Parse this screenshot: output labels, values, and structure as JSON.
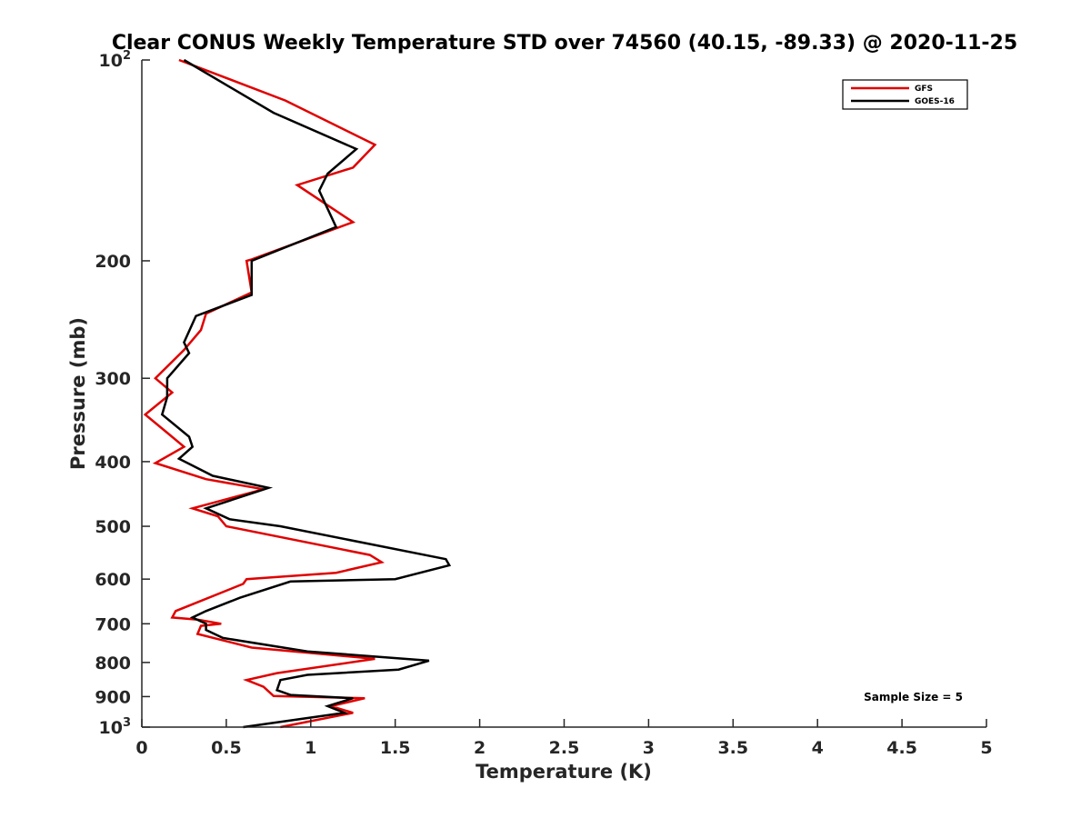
{
  "chart_data": {
    "type": "line",
    "title": "Clear CONUS Weekly Temperature STD over 74560 (40.15, -89.33) @ 2020-11-25",
    "xlabel": "Temperature (K)",
    "ylabel": "Pressure (mb)",
    "xlim": [
      0,
      5
    ],
    "ylim": [
      100,
      1000
    ],
    "y_scale": "log",
    "y_reversed": true,
    "x_ticks": [
      "0",
      "0.5",
      "1",
      "1.5",
      "2",
      "2.5",
      "3",
      "3.5",
      "4",
      "4.5",
      "5"
    ],
    "y_ticks": [
      {
        "value": 100,
        "base": "10",
        "exp": "2",
        "label": ""
      },
      {
        "value": 200,
        "label": "200"
      },
      {
        "value": 300,
        "label": "300"
      },
      {
        "value": 400,
        "label": "400"
      },
      {
        "value": 500,
        "label": "500"
      },
      {
        "value": 600,
        "label": "600"
      },
      {
        "value": 700,
        "label": "700"
      },
      {
        "value": 800,
        "label": "800"
      },
      {
        "value": 900,
        "label": "900"
      },
      {
        "value": 1000,
        "base": "10",
        "exp": "3",
        "label": ""
      }
    ],
    "grid": false,
    "legend_position": "top-right",
    "annotation": "Sample Size = 5",
    "series": [
      {
        "name": "GFS",
        "color": "#e00000",
        "points": [
          [
            0.22,
            100
          ],
          [
            0.85,
            115
          ],
          [
            1.38,
            134
          ],
          [
            1.25,
            145
          ],
          [
            0.92,
            154
          ],
          [
            1.25,
            175
          ],
          [
            0.65,
            199
          ],
          [
            0.62,
            200
          ],
          [
            0.65,
            223
          ],
          [
            0.38,
            240
          ],
          [
            0.35,
            254
          ],
          [
            0.25,
            272
          ],
          [
            0.08,
            300
          ],
          [
            0.18,
            315
          ],
          [
            0.02,
            340
          ],
          [
            0.15,
            362
          ],
          [
            0.25,
            380
          ],
          [
            0.08,
            402
          ],
          [
            0.38,
            425
          ],
          [
            0.72,
            440
          ],
          [
            0.3,
            470
          ],
          [
            0.45,
            483
          ],
          [
            0.5,
            500
          ],
          [
            1.35,
            552
          ],
          [
            1.42,
            566
          ],
          [
            1.15,
            587
          ],
          [
            0.62,
            600
          ],
          [
            0.6,
            610
          ],
          [
            0.2,
            670
          ],
          [
            0.18,
            685
          ],
          [
            0.33,
            690
          ],
          [
            0.47,
            700
          ],
          [
            0.35,
            705
          ],
          [
            0.33,
            725
          ],
          [
            0.65,
            760
          ],
          [
            1.38,
            790
          ],
          [
            0.8,
            830
          ],
          [
            0.62,
            850
          ],
          [
            0.72,
            870
          ],
          [
            0.78,
            898
          ],
          [
            1.32,
            905
          ],
          [
            1.12,
            930
          ],
          [
            1.25,
            952
          ],
          [
            0.82,
            1000
          ]
        ]
      },
      {
        "name": "GOES-16",
        "color": "#000000",
        "points": [
          [
            0.25,
            100
          ],
          [
            0.78,
            120
          ],
          [
            1.27,
            136
          ],
          [
            1.1,
            148
          ],
          [
            1.05,
            157
          ],
          [
            1.15,
            178
          ],
          [
            0.65,
            200
          ],
          [
            0.65,
            225
          ],
          [
            0.32,
            242
          ],
          [
            0.25,
            265
          ],
          [
            0.28,
            275
          ],
          [
            0.15,
            300
          ],
          [
            0.15,
            320
          ],
          [
            0.12,
            340
          ],
          [
            0.28,
            367
          ],
          [
            0.3,
            380
          ],
          [
            0.22,
            396
          ],
          [
            0.42,
            420
          ],
          [
            0.75,
            438
          ],
          [
            0.38,
            470
          ],
          [
            0.52,
            488
          ],
          [
            0.82,
            500
          ],
          [
            1.8,
            560
          ],
          [
            1.82,
            572
          ],
          [
            1.5,
            600
          ],
          [
            0.88,
            605
          ],
          [
            0.58,
            640
          ],
          [
            0.38,
            670
          ],
          [
            0.3,
            685
          ],
          [
            0.38,
            700
          ],
          [
            0.38,
            715
          ],
          [
            0.48,
            735
          ],
          [
            0.98,
            770
          ],
          [
            1.7,
            795
          ],
          [
            1.52,
            820
          ],
          [
            0.98,
            835
          ],
          [
            0.82,
            850
          ],
          [
            0.8,
            880
          ],
          [
            0.88,
            895
          ],
          [
            1.25,
            905
          ],
          [
            1.1,
            930
          ],
          [
            1.2,
            952
          ],
          [
            0.6,
            1000
          ]
        ]
      }
    ]
  }
}
